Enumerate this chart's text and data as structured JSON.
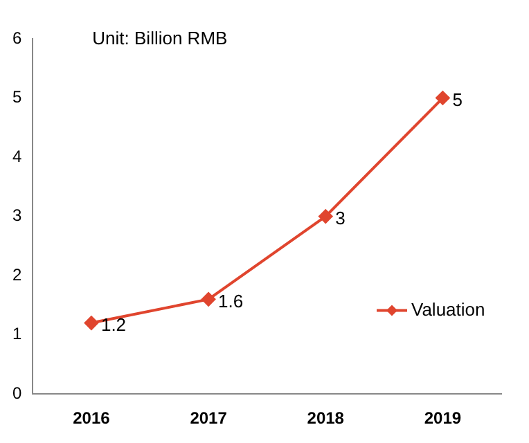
{
  "chart_data": {
    "type": "line",
    "categories": [
      "2016",
      "2017",
      "2018",
      "2019"
    ],
    "series": [
      {
        "name": "Valuation",
        "color": "#e0452e",
        "values": [
          1.2,
          1.6,
          3,
          5
        ]
      }
    ],
    "ylim": [
      0,
      6
    ],
    "yticks": [
      0,
      1,
      2,
      3,
      4,
      5,
      6
    ],
    "grid": false,
    "legend": "right",
    "marker": "diamond",
    "line_style": "solid",
    "data_labels": true,
    "annotations": [
      "Unit: Billion RMB"
    ]
  }
}
